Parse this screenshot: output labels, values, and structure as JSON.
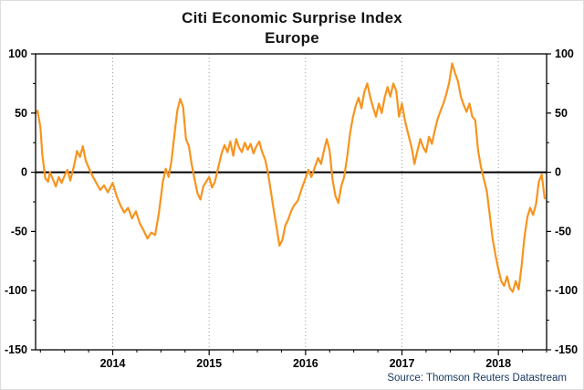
{
  "title": {
    "line1": "Citi Economic Surprise Index",
    "line2": "Europe"
  },
  "source": "Source: Thomson Reuters Datastream",
  "colors": {
    "line": "#F7941E",
    "zero_line": "#000000",
    "frame": "#000000",
    "grid": "#9a9a9a",
    "tick_label": "#000000",
    "title_text": "#141414",
    "source_text": "#17375E",
    "background": "#ffffff"
  },
  "chart_data": {
    "type": "line",
    "title": "Citi Economic Surprise Index",
    "subtitle": "Europe",
    "x_range": [
      2013.2,
      2018.5
    ],
    "y_range": [
      -150,
      100
    ],
    "y_ticks": [
      100,
      50,
      0,
      -50,
      -100,
      -150
    ],
    "y_minor_step": 25,
    "x_ticks": [
      2014,
      2015,
      2016,
      2017,
      2018
    ],
    "x_minor_step": 0.25,
    "grid": "vertical-dotted-at-years",
    "zero_line": true,
    "legend": "none",
    "series": [
      {
        "name": "Citi Economic Surprise Index - Europe",
        "points": [
          [
            2013.2,
            50
          ],
          [
            2013.22,
            52
          ],
          [
            2013.25,
            38
          ],
          [
            2013.27,
            15
          ],
          [
            2013.3,
            -5
          ],
          [
            2013.33,
            -8
          ],
          [
            2013.35,
            0
          ],
          [
            2013.38,
            -6
          ],
          [
            2013.41,
            -12
          ],
          [
            2013.44,
            -4
          ],
          [
            2013.47,
            -9
          ],
          [
            2013.5,
            -3
          ],
          [
            2013.53,
            2
          ],
          [
            2013.56,
            -7
          ],
          [
            2013.6,
            6
          ],
          [
            2013.63,
            18
          ],
          [
            2013.66,
            13
          ],
          [
            2013.69,
            22
          ],
          [
            2013.72,
            10
          ],
          [
            2013.75,
            4
          ],
          [
            2013.79,
            -3
          ],
          [
            2013.83,
            -9
          ],
          [
            2013.87,
            -15
          ],
          [
            2013.91,
            -11
          ],
          [
            2013.95,
            -17
          ],
          [
            2014.0,
            -9
          ],
          [
            2014.04,
            -20
          ],
          [
            2014.08,
            -28
          ],
          [
            2014.12,
            -34
          ],
          [
            2014.16,
            -30
          ],
          [
            2014.2,
            -39
          ],
          [
            2014.24,
            -33
          ],
          [
            2014.28,
            -43
          ],
          [
            2014.32,
            -49
          ],
          [
            2014.36,
            -56
          ],
          [
            2014.4,
            -51
          ],
          [
            2014.44,
            -53
          ],
          [
            2014.48,
            -34
          ],
          [
            2014.52,
            -8
          ],
          [
            2014.55,
            3
          ],
          [
            2014.58,
            -4
          ],
          [
            2014.61,
            10
          ],
          [
            2014.64,
            32
          ],
          [
            2014.67,
            52
          ],
          [
            2014.7,
            62
          ],
          [
            2014.73,
            55
          ],
          [
            2014.76,
            28
          ],
          [
            2014.79,
            22
          ],
          [
            2014.82,
            6
          ],
          [
            2014.85,
            -6
          ],
          [
            2014.88,
            -18
          ],
          [
            2014.91,
            -23
          ],
          [
            2014.94,
            -12
          ],
          [
            2014.97,
            -8
          ],
          [
            2015.0,
            -4
          ],
          [
            2015.03,
            -13
          ],
          [
            2015.06,
            -8
          ],
          [
            2015.1,
            6
          ],
          [
            2015.13,
            16
          ],
          [
            2015.16,
            23
          ],
          [
            2015.19,
            17
          ],
          [
            2015.22,
            26
          ],
          [
            2015.25,
            14
          ],
          [
            2015.28,
            28
          ],
          [
            2015.31,
            21
          ],
          [
            2015.34,
            17
          ],
          [
            2015.37,
            25
          ],
          [
            2015.4,
            19
          ],
          [
            2015.43,
            24
          ],
          [
            2015.46,
            16
          ],
          [
            2015.49,
            22
          ],
          [
            2015.52,
            26
          ],
          [
            2015.55,
            17
          ],
          [
            2015.58,
            11
          ],
          [
            2015.61,
            0
          ],
          [
            2015.64,
            -16
          ],
          [
            2015.67,
            -32
          ],
          [
            2015.7,
            -47
          ],
          [
            2015.73,
            -62
          ],
          [
            2015.76,
            -57
          ],
          [
            2015.79,
            -45
          ],
          [
            2015.82,
            -40
          ],
          [
            2015.85,
            -33
          ],
          [
            2015.88,
            -28
          ],
          [
            2015.92,
            -24
          ],
          [
            2015.96,
            -14
          ],
          [
            2016.0,
            -5
          ],
          [
            2016.03,
            2
          ],
          [
            2016.06,
            -4
          ],
          [
            2016.1,
            5
          ],
          [
            2016.13,
            12
          ],
          [
            2016.16,
            7
          ],
          [
            2016.19,
            18
          ],
          [
            2016.22,
            28
          ],
          [
            2016.25,
            18
          ],
          [
            2016.28,
            -6
          ],
          [
            2016.31,
            -20
          ],
          [
            2016.34,
            -26
          ],
          [
            2016.37,
            -12
          ],
          [
            2016.4,
            -4
          ],
          [
            2016.43,
            12
          ],
          [
            2016.46,
            32
          ],
          [
            2016.49,
            46
          ],
          [
            2016.52,
            56
          ],
          [
            2016.55,
            63
          ],
          [
            2016.58,
            54
          ],
          [
            2016.61,
            68
          ],
          [
            2016.64,
            75
          ],
          [
            2016.67,
            64
          ],
          [
            2016.7,
            55
          ],
          [
            2016.73,
            47
          ],
          [
            2016.76,
            58
          ],
          [
            2016.79,
            50
          ],
          [
            2016.82,
            63
          ],
          [
            2016.85,
            72
          ],
          [
            2016.88,
            64
          ],
          [
            2016.91,
            75
          ],
          [
            2016.94,
            69
          ],
          [
            2016.97,
            47
          ],
          [
            2017.0,
            58
          ],
          [
            2017.03,
            44
          ],
          [
            2017.06,
            34
          ],
          [
            2017.1,
            21
          ],
          [
            2017.13,
            7
          ],
          [
            2017.16,
            18
          ],
          [
            2017.19,
            28
          ],
          [
            2017.22,
            21
          ],
          [
            2017.25,
            17
          ],
          [
            2017.28,
            30
          ],
          [
            2017.31,
            24
          ],
          [
            2017.34,
            35
          ],
          [
            2017.37,
            45
          ],
          [
            2017.4,
            52
          ],
          [
            2017.43,
            58
          ],
          [
            2017.46,
            66
          ],
          [
            2017.49,
            76
          ],
          [
            2017.52,
            92
          ],
          [
            2017.55,
            84
          ],
          [
            2017.58,
            77
          ],
          [
            2017.61,
            64
          ],
          [
            2017.64,
            57
          ],
          [
            2017.67,
            51
          ],
          [
            2017.7,
            58
          ],
          [
            2017.73,
            47
          ],
          [
            2017.76,
            44
          ],
          [
            2017.79,
            18
          ],
          [
            2017.82,
            4
          ],
          [
            2017.85,
            -6
          ],
          [
            2017.88,
            -16
          ],
          [
            2017.91,
            -36
          ],
          [
            2017.94,
            -56
          ],
          [
            2017.97,
            -70
          ],
          [
            2018.0,
            -82
          ],
          [
            2018.03,
            -92
          ],
          [
            2018.06,
            -96
          ],
          [
            2018.09,
            -88
          ],
          [
            2018.12,
            -98
          ],
          [
            2018.15,
            -101
          ],
          [
            2018.18,
            -92
          ],
          [
            2018.21,
            -99
          ],
          [
            2018.24,
            -80
          ],
          [
            2018.27,
            -55
          ],
          [
            2018.3,
            -38
          ],
          [
            2018.33,
            -30
          ],
          [
            2018.36,
            -36
          ],
          [
            2018.39,
            -27
          ],
          [
            2018.42,
            -8
          ],
          [
            2018.45,
            -2
          ],
          [
            2018.48,
            -22
          ]
        ]
      }
    ]
  }
}
